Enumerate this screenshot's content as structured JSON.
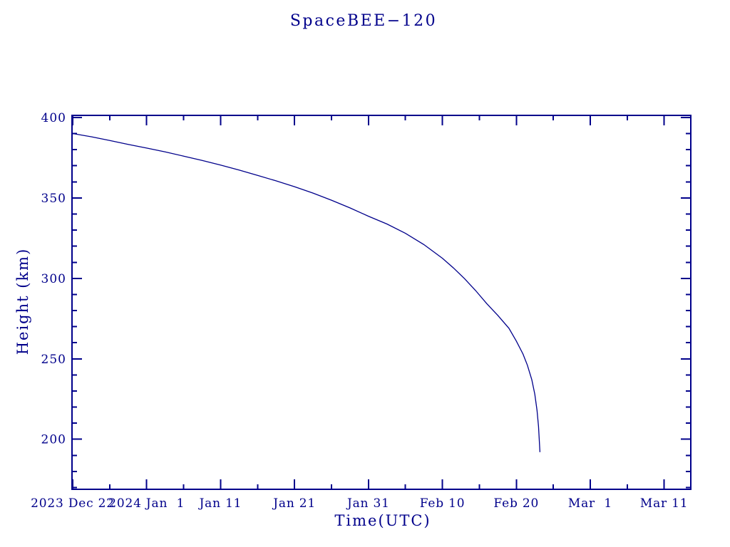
{
  "page": {
    "background_color": "#ffffff",
    "accent_color": "#00008B"
  },
  "chart_data": {
    "type": "line",
    "title": "SpaceBEE−120",
    "xlabel": "Time(UTC)",
    "ylabel": "Height (km)",
    "grid": false,
    "legend": "none",
    "line_color": "#00008B",
    "x_axis": {
      "unit": "days since 2023 Dec 22",
      "range": [
        -0.1,
        83.6
      ],
      "major_ticks": [
        {
          "day": 0,
          "label": "2023 Dec 22"
        },
        {
          "day": 10,
          "label": "2024 Jan  1"
        },
        {
          "day": 20,
          "label": "Jan 11"
        },
        {
          "day": 30,
          "label": "Jan 21"
        },
        {
          "day": 40,
          "label": "Jan 31"
        },
        {
          "day": 50,
          "label": "Feb 10"
        },
        {
          "day": 60,
          "label": "Feb 20"
        },
        {
          "day": 70,
          "label": "Mar  1"
        },
        {
          "day": 80,
          "label": "Mar 11"
        }
      ],
      "minor_tick_days": [
        5,
        15,
        25,
        35,
        45,
        55,
        65,
        75
      ]
    },
    "y_axis": {
      "range": [
        168.9,
        401.3
      ],
      "major_ticks": [
        200,
        250,
        300,
        350,
        400
      ],
      "minor_tick_step": 10
    },
    "series": [
      {
        "name": "SpaceBEE-120 height",
        "color": "#00008B",
        "points_day_km": [
          [
            0,
            390
          ],
          [
            2.5,
            388
          ],
          [
            5,
            385.7
          ],
          [
            7.5,
            383.3
          ],
          [
            10,
            381
          ],
          [
            12.5,
            378.6
          ],
          [
            15,
            376
          ],
          [
            17.5,
            373.3
          ],
          [
            20,
            370.4
          ],
          [
            22.5,
            367.3
          ],
          [
            25,
            364
          ],
          [
            27.5,
            360.6
          ],
          [
            30,
            357
          ],
          [
            32.5,
            353
          ],
          [
            35,
            348.6
          ],
          [
            37.5,
            343.8
          ],
          [
            40,
            338.6
          ],
          [
            42.5,
            333.8
          ],
          [
            45,
            328
          ],
          [
            47.5,
            321
          ],
          [
            50,
            312.5
          ],
          [
            51.5,
            306.5
          ],
          [
            53,
            299.8
          ],
          [
            54.5,
            292.4
          ],
          [
            56,
            284.3
          ],
          [
            57.5,
            277
          ],
          [
            59,
            269
          ],
          [
            60,
            261
          ],
          [
            60.9,
            253
          ],
          [
            61.5,
            246
          ],
          [
            62.1,
            237
          ],
          [
            62.5,
            228
          ],
          [
            62.8,
            218
          ],
          [
            63,
            208
          ],
          [
            63.1,
            200
          ],
          [
            63.2,
            192
          ]
        ]
      }
    ]
  }
}
